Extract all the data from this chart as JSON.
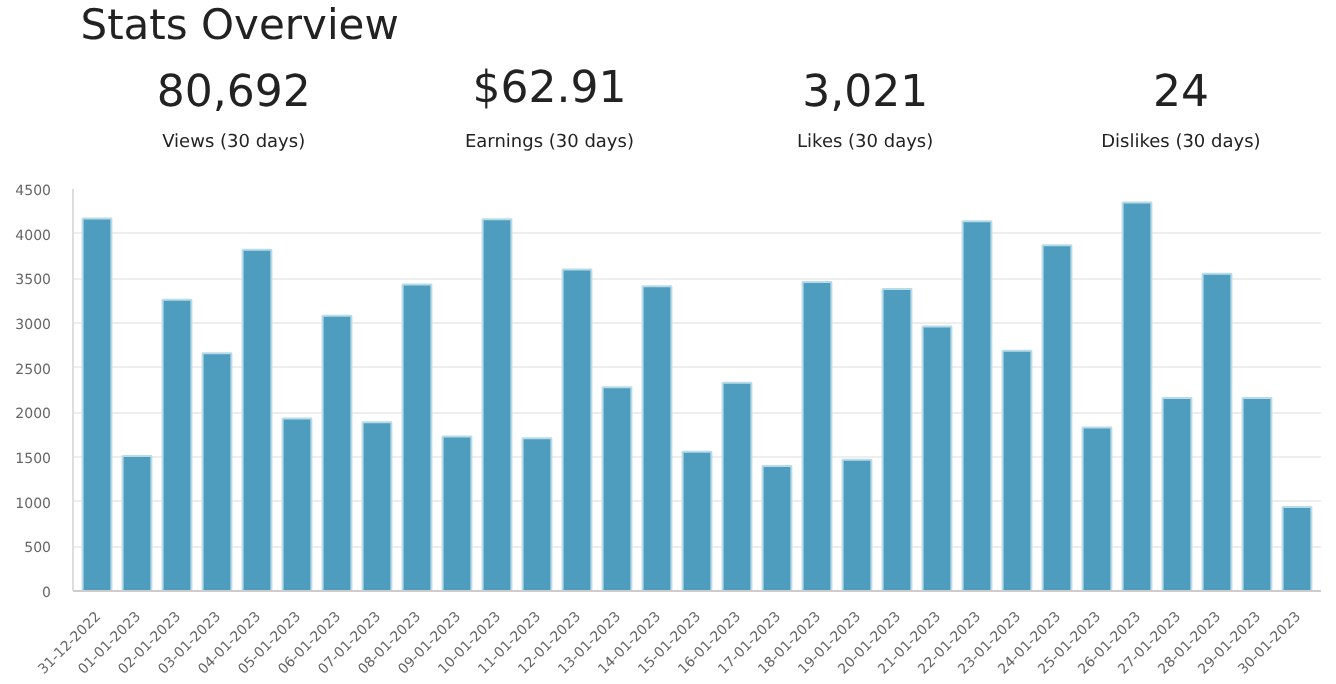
{
  "chart_data": [
    {
      "type": "other",
      "title": "Stats Overview",
      "annotations": [
        "80,692",
        "Views (30 days)",
        "$62.91",
        "Earnings (30 days)",
        "3,021",
        "Likes (30 days)",
        "24",
        "Dislikes (30 days)"
      ]
    },
    {
      "type": "bar",
      "categories": [
        "31-12-2022",
        "01-01-2023",
        "02-01-2023",
        "03-01-2023",
        "04-01-2023",
        "05-01-2023",
        "06-01-2023",
        "07-01-2023",
        "08-01-2023",
        "09-01-2023",
        "10-01-2023",
        "11-01-2023",
        "12-01-2023",
        "13-01-2023",
        "14-01-2023",
        "15-01-2023",
        "16-01-2023",
        "17-01-2023",
        "18-01-2023",
        "19-01-2023",
        "20-01-2023",
        "21-01-2023",
        "22-01-2023",
        "23-01-2023",
        "24-01-2023",
        "25-01-2023",
        "26-01-2023",
        "27-01-2023",
        "28-01-2023",
        "29-01-2023",
        "30-01-2023"
      ],
      "values": [
        4170,
        1510,
        3260,
        2660,
        3820,
        1930,
        3080,
        1890,
        3430,
        1730,
        4160,
        1710,
        3600,
        2280,
        3410,
        1560,
        2330,
        1400,
        3460,
        1470,
        3380,
        2960,
        4140,
        2690,
        3870,
        1830,
        4350,
        2160,
        3550,
        2160,
        940
      ],
      "color": "#4e9dbf",
      "ylim": [
        0,
        4500
      ],
      "yticks": [
        0,
        500,
        1000,
        1500,
        2000,
        2500,
        3000,
        3500,
        4000,
        4500
      ],
      "grid": "y"
    }
  ]
}
